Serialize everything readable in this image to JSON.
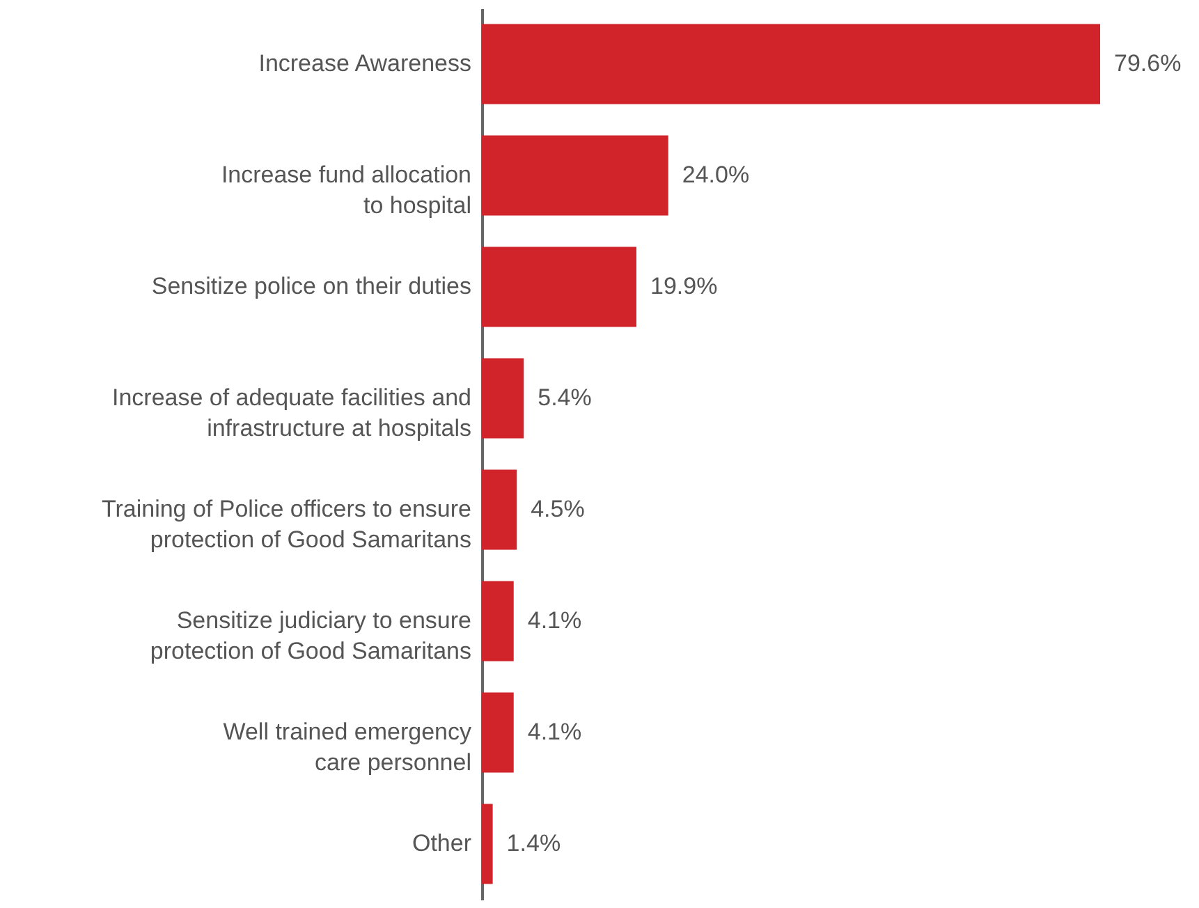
{
  "chart_data": {
    "type": "bar",
    "orientation": "horizontal",
    "categories": [
      "Increase Awareness",
      "Increase fund allocation\nto hospital",
      "Sensitize police on their duties",
      "Increase of adequate facilities and\ninfrastructure at hospitals",
      "Training of Police officers to ensure\nprotection of Good Samaritans",
      "Sensitize judiciary to ensure\nprotection of Good Samaritans",
      "Well trained emergency\ncare personnel",
      "Other"
    ],
    "values": [
      79.6,
      24.0,
      19.9,
      5.4,
      4.5,
      4.1,
      4.1,
      1.4
    ],
    "value_labels": [
      "79.6%",
      "24.0%",
      "19.9%",
      "5.4%",
      "4.5%",
      "4.1%",
      "4.1%",
      "1.4%"
    ],
    "color": "#d0232a"
  }
}
